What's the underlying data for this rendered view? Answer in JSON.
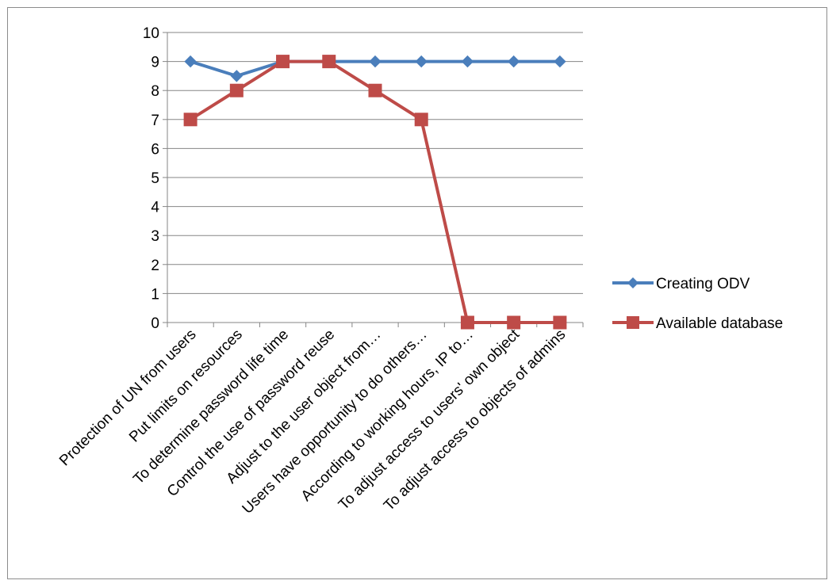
{
  "chart_data": {
    "type": "line",
    "title": "",
    "xlabel": "",
    "ylabel": "",
    "ylim": [
      0,
      10
    ],
    "yticks": [
      0,
      1,
      2,
      3,
      4,
      5,
      6,
      7,
      8,
      9,
      10
    ],
    "grid": true,
    "legend_position": "right",
    "categories": [
      "Protection of UN from users",
      "Put limits on resources",
      "To determine password life time",
      "Control the use of password reuse",
      "Adjust to the user object from…",
      "Users have opportunity  to do others…",
      "According to working hours, IP  to…",
      "To adjust access to users' own object",
      "To adjust access to objects of admins"
    ],
    "series": [
      {
        "name": "Creating ODV",
        "marker": "diamond",
        "color": "#4a7ebb",
        "values": [
          9,
          8.5,
          9,
          9,
          9,
          9,
          9,
          9,
          9
        ]
      },
      {
        "name": "Available database",
        "marker": "square",
        "color": "#be4b48",
        "values": [
          7,
          8,
          9,
          9,
          8,
          7,
          0,
          0,
          0
        ]
      }
    ]
  }
}
